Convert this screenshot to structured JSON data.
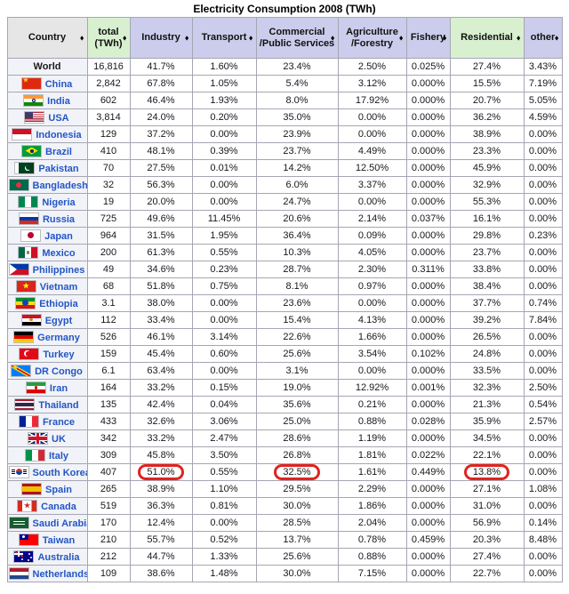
{
  "title": "Electricity Consumption 2008 (TWh)",
  "sort_icon": "♦",
  "colors": {
    "header_lavender": "#ccccec",
    "header_green": "#d8f0d0",
    "header_gray": "#e6e6e6",
    "country_link_blue": "#2456c4",
    "highlight_red": "#e1231e",
    "grid_border": "#a6a6b4"
  },
  "highlight": {
    "row": "South Korea",
    "columns": [
      "Industry",
      "Commercial /Public Services",
      "Residential"
    ],
    "shape": "red-oval"
  },
  "chart_data": {
    "type": "table",
    "title": "Electricity Consumption 2008 (TWh)",
    "columns": [
      {
        "label": "Country",
        "tint": "gray"
      },
      {
        "label": "total (TWh)",
        "tint": "green"
      },
      {
        "label": "Industry",
        "tint": "lavender"
      },
      {
        "label": "Transport",
        "tint": "lavender"
      },
      {
        "label": "Commercial /Public Services",
        "tint": "lavender"
      },
      {
        "label": "Agriculture /Forestry",
        "tint": "lavender"
      },
      {
        "label": "Fishery",
        "tint": "lavender"
      },
      {
        "label": "Residential",
        "tint": "green"
      },
      {
        "label": "other",
        "tint": "lavender"
      }
    ],
    "rows": [
      {
        "country": "World",
        "flag": null,
        "link": false,
        "values": [
          "16,816",
          "41.7%",
          "1.60%",
          "23.4%",
          "2.50%",
          "0.025%",
          "27.4%",
          "3.43%"
        ]
      },
      {
        "country": "China",
        "flag": "china",
        "values": [
          "2,842",
          "67.8%",
          "1.05%",
          "5.4%",
          "3.12%",
          "0.000%",
          "15.5%",
          "7.19%"
        ]
      },
      {
        "country": "India",
        "flag": "india",
        "values": [
          "602",
          "46.4%",
          "1.93%",
          "8.0%",
          "17.92%",
          "0.000%",
          "20.7%",
          "5.05%"
        ]
      },
      {
        "country": "USA",
        "flag": "usa",
        "values": [
          "3,814",
          "24.0%",
          "0.20%",
          "35.0%",
          "0.00%",
          "0.000%",
          "36.2%",
          "4.59%"
        ]
      },
      {
        "country": "Indonesia",
        "flag": "indonesia",
        "values": [
          "129",
          "37.2%",
          "0.00%",
          "23.9%",
          "0.00%",
          "0.000%",
          "38.9%",
          "0.00%"
        ]
      },
      {
        "country": "Brazil",
        "flag": "brazil",
        "values": [
          "410",
          "48.1%",
          "0.39%",
          "23.7%",
          "4.49%",
          "0.000%",
          "23.3%",
          "0.00%"
        ]
      },
      {
        "country": "Pakistan",
        "flag": "pakistan",
        "values": [
          "70",
          "27.5%",
          "0.01%",
          "14.2%",
          "12.50%",
          "0.000%",
          "45.9%",
          "0.00%"
        ]
      },
      {
        "country": "Bangladesh",
        "flag": "bangladesh",
        "values": [
          "32",
          "56.3%",
          "0.00%",
          "6.0%",
          "3.37%",
          "0.000%",
          "32.9%",
          "0.00%"
        ]
      },
      {
        "country": "Nigeria",
        "flag": "nigeria",
        "values": [
          "19",
          "20.0%",
          "0.00%",
          "24.7%",
          "0.00%",
          "0.000%",
          "55.3%",
          "0.00%"
        ]
      },
      {
        "country": "Russia",
        "flag": "russia",
        "values": [
          "725",
          "49.6%",
          "11.45%",
          "20.6%",
          "2.14%",
          "0.037%",
          "16.1%",
          "0.00%"
        ]
      },
      {
        "country": "Japan",
        "flag": "japan",
        "values": [
          "964",
          "31.5%",
          "1.95%",
          "36.4%",
          "0.09%",
          "0.000%",
          "29.8%",
          "0.23%"
        ]
      },
      {
        "country": "Mexico",
        "flag": "mexico",
        "values": [
          "200",
          "61.3%",
          "0.55%",
          "10.3%",
          "4.05%",
          "0.000%",
          "23.7%",
          "0.00%"
        ]
      },
      {
        "country": "Philippines",
        "flag": "philippines",
        "values": [
          "49",
          "34.6%",
          "0.23%",
          "28.7%",
          "2.30%",
          "0.311%",
          "33.8%",
          "0.00%"
        ]
      },
      {
        "country": "Vietnam",
        "flag": "vietnam",
        "values": [
          "68",
          "51.8%",
          "0.75%",
          "8.1%",
          "0.97%",
          "0.000%",
          "38.4%",
          "0.00%"
        ]
      },
      {
        "country": "Ethiopia",
        "flag": "ethiopia",
        "values": [
          "3.1",
          "38.0%",
          "0.00%",
          "23.6%",
          "0.00%",
          "0.000%",
          "37.7%",
          "0.74%"
        ]
      },
      {
        "country": "Egypt",
        "flag": "egypt",
        "values": [
          "112",
          "33.4%",
          "0.00%",
          "15.4%",
          "4.13%",
          "0.000%",
          "39.2%",
          "7.84%"
        ]
      },
      {
        "country": "Germany",
        "flag": "germany",
        "values": [
          "526",
          "46.1%",
          "3.14%",
          "22.6%",
          "1.66%",
          "0.000%",
          "26.5%",
          "0.00%"
        ]
      },
      {
        "country": "Turkey",
        "flag": "turkey",
        "values": [
          "159",
          "45.4%",
          "0.60%",
          "25.6%",
          "3.54%",
          "0.102%",
          "24.8%",
          "0.00%"
        ]
      },
      {
        "country": "DR Congo",
        "flag": "dr-congo",
        "values": [
          "6.1",
          "63.4%",
          "0.00%",
          "3.1%",
          "0.00%",
          "0.000%",
          "33.5%",
          "0.00%"
        ]
      },
      {
        "country": "Iran",
        "flag": "iran",
        "values": [
          "164",
          "33.2%",
          "0.15%",
          "19.0%",
          "12.92%",
          "0.001%",
          "32.3%",
          "2.50%"
        ]
      },
      {
        "country": "Thailand",
        "flag": "thailand",
        "values": [
          "135",
          "42.4%",
          "0.04%",
          "35.6%",
          "0.21%",
          "0.000%",
          "21.3%",
          "0.54%"
        ]
      },
      {
        "country": "France",
        "flag": "france",
        "values": [
          "433",
          "32.6%",
          "3.06%",
          "25.0%",
          "0.88%",
          "0.028%",
          "35.9%",
          "2.57%"
        ]
      },
      {
        "country": "UK",
        "flag": "uk",
        "values": [
          "342",
          "33.2%",
          "2.47%",
          "28.6%",
          "1.19%",
          "0.000%",
          "34.5%",
          "0.00%"
        ]
      },
      {
        "country": "Italy",
        "flag": "italy",
        "values": [
          "309",
          "45.8%",
          "3.50%",
          "26.8%",
          "1.81%",
          "0.022%",
          "22.1%",
          "0.00%"
        ]
      },
      {
        "country": "South Korea",
        "flag": "south-korea",
        "values": [
          "407",
          "51.0%",
          "0.55%",
          "32.5%",
          "1.61%",
          "0.449%",
          "13.8%",
          "0.00%"
        ],
        "circled": [
          1,
          3,
          6
        ]
      },
      {
        "country": "Spain",
        "flag": "spain",
        "values": [
          "265",
          "38.9%",
          "1.10%",
          "29.5%",
          "2.29%",
          "0.000%",
          "27.1%",
          "1.08%"
        ]
      },
      {
        "country": "Canada",
        "flag": "canada",
        "values": [
          "519",
          "36.3%",
          "0.81%",
          "30.0%",
          "1.86%",
          "0.000%",
          "31.0%",
          "0.00%"
        ]
      },
      {
        "country": "Saudi Arabia",
        "flag": "saudi-arabia",
        "values": [
          "170",
          "12.4%",
          "0.00%",
          "28.5%",
          "2.04%",
          "0.000%",
          "56.9%",
          "0.14%"
        ]
      },
      {
        "country": "Taiwan",
        "flag": "taiwan",
        "values": [
          "210",
          "55.7%",
          "0.52%",
          "13.7%",
          "0.78%",
          "0.459%",
          "20.3%",
          "8.48%"
        ]
      },
      {
        "country": "Australia",
        "flag": "australia",
        "values": [
          "212",
          "44.7%",
          "1.33%",
          "25.6%",
          "0.88%",
          "0.000%",
          "27.4%",
          "0.00%"
        ]
      },
      {
        "country": "Netherlands",
        "flag": "netherlands",
        "values": [
          "109",
          "38.6%",
          "1.48%",
          "30.0%",
          "7.15%",
          "0.000%",
          "22.7%",
          "0.00%"
        ]
      }
    ]
  }
}
